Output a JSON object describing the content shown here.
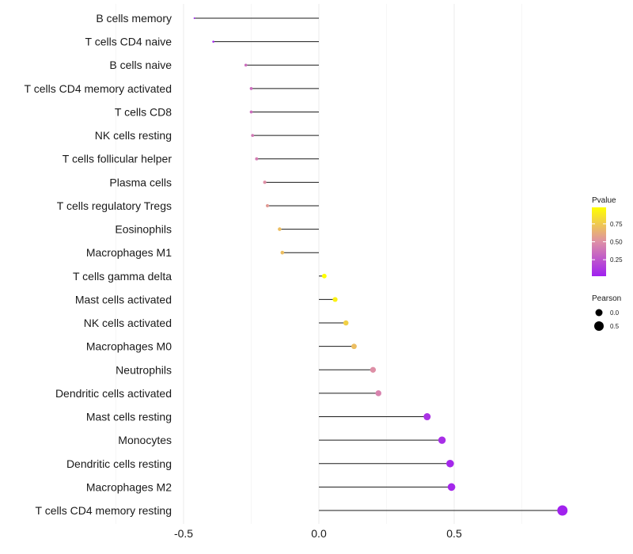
{
  "chart_data": {
    "type": "lollipop",
    "title": "",
    "xlabel": "",
    "ylabel": "",
    "xlim": [
      -0.5,
      0.9
    ],
    "x_ticks": [
      -0.5,
      0.0,
      0.5
    ],
    "x_tick_labels": [
      "-0.5",
      "0.0",
      "0.5"
    ],
    "grid": true,
    "categories": [
      "B cells memory",
      "T cells CD4 naive",
      "B cells naive",
      "T cells CD4 memory activated",
      "T cells CD8",
      "NK cells resting",
      "T cells follicular helper",
      "Plasma cells",
      "T cells regulatory  Tregs ",
      "Eosinophils",
      "Macrophages M1",
      "T cells gamma delta",
      "Mast cells activated",
      "NK cells activated",
      "Macrophages M0",
      "Neutrophils",
      "Dendritic cells activated",
      "Mast cells resting",
      "Monocytes",
      "Dendritic cells resting",
      "Macrophages M2",
      "T cells CD4 memory resting"
    ],
    "pearson": [
      -0.46,
      -0.39,
      -0.27,
      -0.25,
      -0.25,
      -0.245,
      -0.23,
      -0.2,
      -0.19,
      -0.145,
      -0.135,
      0.02,
      0.06,
      0.1,
      0.13,
      0.2,
      0.22,
      0.4,
      0.455,
      0.485,
      0.49,
      0.9
    ],
    "pvalue": [
      0.02,
      0.04,
      0.35,
      0.35,
      0.35,
      0.4,
      0.42,
      0.5,
      0.55,
      0.7,
      0.7,
      0.98,
      0.92,
      0.78,
      0.7,
      0.5,
      0.45,
      0.1,
      0.08,
      0.05,
      0.05,
      0.03
    ],
    "legend": {
      "color_title": "Pvalue",
      "color_ticks": [
        0.25,
        0.5,
        0.75
      ],
      "color_tick_labels": [
        "0.25",
        "0.50",
        "0.75"
      ],
      "color_range": [
        0.02,
        0.98
      ],
      "color_low": "#a020f0",
      "color_mid": "#de8fa6",
      "color_high": "#ffff00",
      "size_title": "Pearson",
      "size_values": [
        0.0,
        0.5
      ],
      "size_labels": [
        "0.0",
        "0.5"
      ],
      "placement": "right"
    }
  }
}
